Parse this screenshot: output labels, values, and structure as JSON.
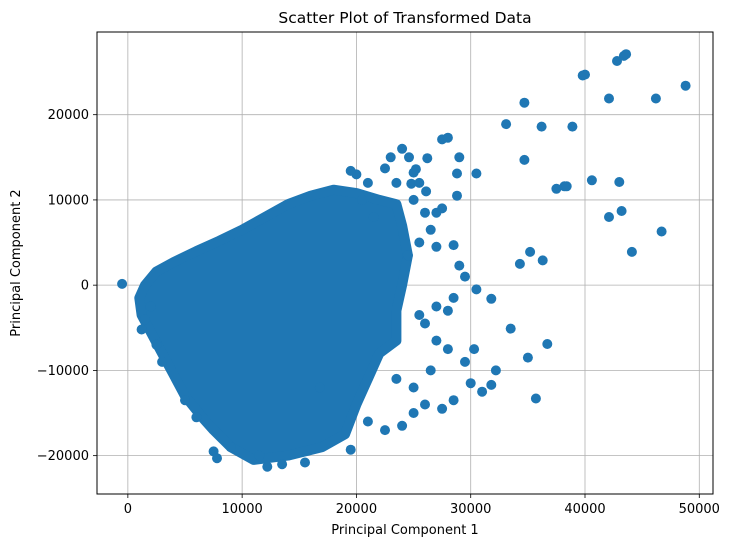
{
  "chart_data": {
    "type": "scatter",
    "title": "Scatter Plot of Transformed Data",
    "xlabel": "Principal Component 1",
    "ylabel": "Principal Component 2",
    "xlim": [
      -2700,
      51200
    ],
    "ylim": [
      -24500,
      29700
    ],
    "xticks": [
      0,
      10000,
      20000,
      30000,
      40000,
      50000
    ],
    "xtick_labels": [
      "0",
      "10000",
      "20000",
      "30000",
      "40000",
      "50000"
    ],
    "yticks": [
      -20000,
      -10000,
      0,
      10000,
      20000
    ],
    "ytick_labels": [
      "−20000",
      "−10000",
      "0",
      "10000",
      "20000"
    ],
    "grid": true,
    "marker_color": "#1f77b4",
    "dense_region": {
      "description_hidden": true,
      "boundary": [
        [
          1500,
          0
        ],
        [
          2500,
          1600
        ],
        [
          4000,
          2700
        ],
        [
          6000,
          4000
        ],
        [
          8000,
          5200
        ],
        [
          10000,
          6500
        ],
        [
          12000,
          8000
        ],
        [
          14000,
          9500
        ],
        [
          16000,
          10500
        ],
        [
          18000,
          11200
        ],
        [
          20000,
          10800
        ],
        [
          22000,
          10000
        ],
        [
          23500,
          9500
        ],
        [
          24000,
          7000
        ],
        [
          24500,
          3500
        ],
        [
          24000,
          0
        ],
        [
          23500,
          -3000
        ],
        [
          23500,
          -6500
        ],
        [
          22000,
          -8000
        ],
        [
          21000,
          -11000
        ],
        [
          20000,
          -14000
        ],
        [
          19000,
          -17500
        ],
        [
          17000,
          -19000
        ],
        [
          14000,
          -20000
        ],
        [
          11000,
          -20500
        ],
        [
          9000,
          -19000
        ],
        [
          7500,
          -17000
        ],
        [
          6500,
          -15500
        ],
        [
          5000,
          -13000
        ],
        [
          4000,
          -10500
        ],
        [
          3000,
          -8000
        ],
        [
          2000,
          -5500
        ],
        [
          1200,
          -3500
        ],
        [
          1000,
          -1500
        ]
      ]
    },
    "points": [
      [
        -500,
        150
      ],
      [
        2000,
        -2500
      ],
      [
        1500,
        -4000
      ],
      [
        1200,
        -5200
      ],
      [
        2500,
        -7000
      ],
      [
        3000,
        -9000
      ],
      [
        5000,
        -13500
      ],
      [
        6000,
        -15500
      ],
      [
        7500,
        -19500
      ],
      [
        7800,
        -20300
      ],
      [
        9000,
        -19000
      ],
      [
        11500,
        -20000
      ],
      [
        12200,
        -21300
      ],
      [
        13500,
        -21000
      ],
      [
        15500,
        -20800
      ],
      [
        19500,
        -19300
      ],
      [
        16800,
        -12000
      ],
      [
        21000,
        -16000
      ],
      [
        22500,
        -17000
      ],
      [
        24000,
        -16500
      ],
      [
        25000,
        -15000
      ],
      [
        26000,
        -14000
      ],
      [
        27500,
        -14500
      ],
      [
        28500,
        -13500
      ],
      [
        30000,
        -11500
      ],
      [
        31000,
        -12500
      ],
      [
        31800,
        -11700
      ],
      [
        32200,
        -10000
      ],
      [
        29500,
        -9000
      ],
      [
        28000,
        -7500
      ],
      [
        27000,
        -6500
      ],
      [
        26000,
        -4500
      ],
      [
        25500,
        -3500
      ],
      [
        27000,
        -2500
      ],
      [
        28500,
        -1500
      ],
      [
        28000,
        -3000
      ],
      [
        30500,
        -500
      ],
      [
        30300,
        -7500
      ],
      [
        26500,
        -10000
      ],
      [
        25000,
        -12000
      ],
      [
        23500,
        -11000
      ],
      [
        31800,
        -1600
      ],
      [
        33500,
        -5100
      ],
      [
        35000,
        -8500
      ],
      [
        36700,
        -6900
      ],
      [
        35700,
        -13300
      ],
      [
        34300,
        2500
      ],
      [
        35200,
        3900
      ],
      [
        36300,
        2900
      ],
      [
        29000,
        2300
      ],
      [
        29500,
        1000
      ],
      [
        28500,
        4700
      ],
      [
        26500,
        6500
      ],
      [
        27000,
        4500
      ],
      [
        25500,
        5000
      ],
      [
        24500,
        3500
      ],
      [
        27000,
        8500
      ],
      [
        27500,
        9000
      ],
      [
        28800,
        10500
      ],
      [
        28800,
        13100
      ],
      [
        30500,
        13100
      ],
      [
        29000,
        15000
      ],
      [
        26200,
        14900
      ],
      [
        26100,
        11000
      ],
      [
        24800,
        11900
      ],
      [
        25500,
        12000
      ],
      [
        23500,
        12000
      ],
      [
        22500,
        13700
      ],
      [
        23000,
        15000
      ],
      [
        24000,
        16000
      ],
      [
        24600,
        15000
      ],
      [
        25200,
        13600
      ],
      [
        25000,
        13200
      ],
      [
        27500,
        17100
      ],
      [
        28000,
        17300
      ],
      [
        25000,
        10000
      ],
      [
        26000,
        8500
      ],
      [
        21000,
        12000
      ],
      [
        20000,
        13000
      ],
      [
        19500,
        13400
      ],
      [
        20500,
        10000
      ],
      [
        21500,
        8000
      ],
      [
        33100,
        18900
      ],
      [
        34700,
        21400
      ],
      [
        34700,
        14700
      ],
      [
        36200,
        18600
      ],
      [
        37500,
        11300
      ],
      [
        38200,
        11600
      ],
      [
        38400,
        11600
      ],
      [
        39800,
        24600
      ],
      [
        40000,
        24700
      ],
      [
        40600,
        12300
      ],
      [
        42100,
        21900
      ],
      [
        42100,
        8000
      ],
      [
        42800,
        26300
      ],
      [
        43000,
        12100
      ],
      [
        43200,
        8700
      ],
      [
        43400,
        26900
      ],
      [
        43600,
        27100
      ],
      [
        44100,
        3900
      ],
      [
        46200,
        21900
      ],
      [
        46700,
        6300
      ],
      [
        48800,
        23400
      ],
      [
        38900,
        18600
      ]
    ]
  }
}
